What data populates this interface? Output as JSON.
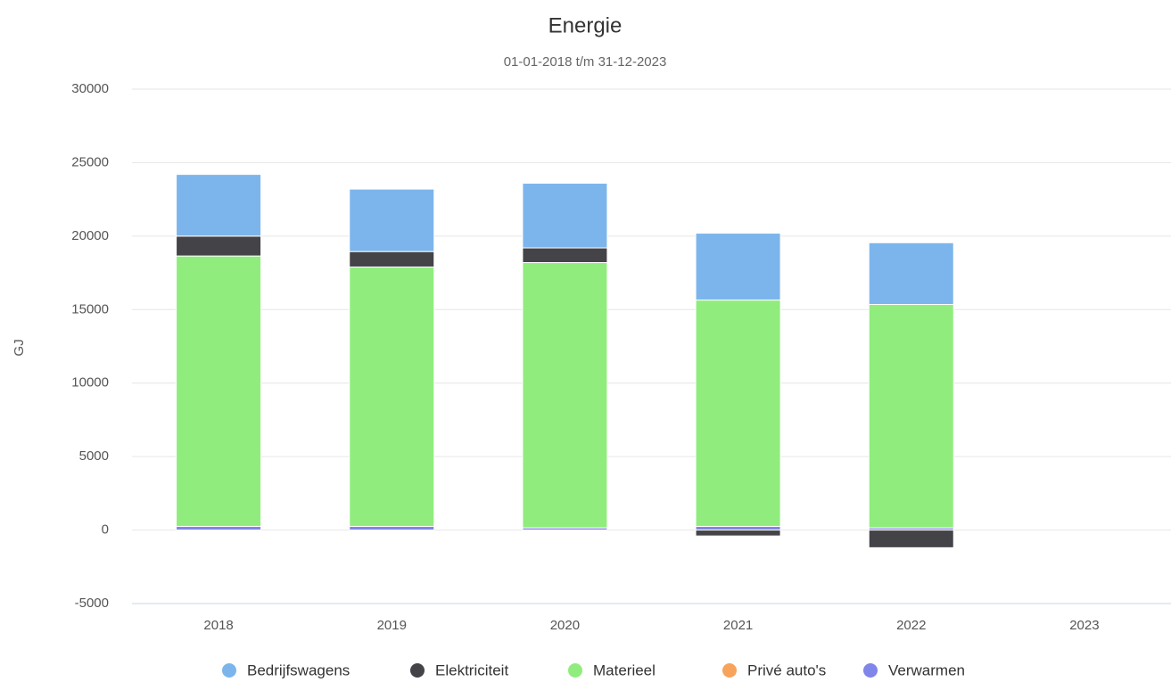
{
  "chart_data": {
    "type": "stacked-bar",
    "title": "Energie",
    "subtitle": "01-01-2018 t/m 31-12-2023",
    "y_axis_label": "GJ",
    "categories": [
      "2018",
      "2019",
      "2020",
      "2021",
      "2022",
      "2023"
    ],
    "series": [
      {
        "name": "Bedrijfswagens",
        "color": "#7cb5ec",
        "values": [
          4200,
          4250,
          4400,
          4550,
          4200,
          0
        ]
      },
      {
        "name": "Elektriciteit",
        "color": "#434348",
        "values": [
          1350,
          1050,
          1000,
          -400,
          -1200,
          0
        ]
      },
      {
        "name": "Materieel",
        "color": "#90ed7d",
        "values": [
          18400,
          17650,
          18050,
          15400,
          15200,
          0
        ]
      },
      {
        "name": "Privé auto's",
        "color": "#f7a35c",
        "values": [
          0,
          0,
          0,
          0,
          0,
          0
        ]
      },
      {
        "name": "Verwarmen",
        "color": "#8085e9",
        "values": [
          250,
          250,
          150,
          250,
          150,
          0
        ]
      }
    ],
    "ylim": [
      -5000,
      30000
    ],
    "yticks": [
      -5000,
      0,
      5000,
      10000,
      15000,
      20000,
      25000,
      30000
    ],
    "grid": true,
    "legend": "bottom"
  }
}
